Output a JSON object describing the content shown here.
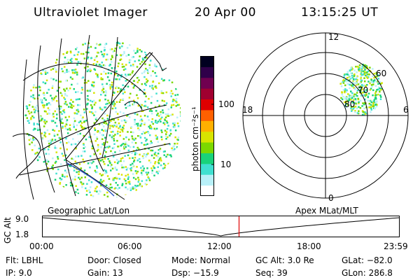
{
  "header": {
    "title": "Ultraviolet Imager",
    "date": "20 Apr 00",
    "time": "13:15:25 UT"
  },
  "colorbar": {
    "unit_label": "photon cm⁻²s⁻¹",
    "ticks": [
      "100",
      "10"
    ],
    "colors": [
      "#ffffff",
      "#b8f0f8",
      "#40e0d0",
      "#19d37a",
      "#7cd800",
      "#d8e400",
      "#ffb000",
      "#ff6000",
      "#e00000",
      "#a00030",
      "#700050",
      "#30004a",
      "#000020"
    ]
  },
  "polar_plot": {
    "mlt_labels": [
      "12",
      "18",
      "6",
      "0"
    ],
    "mlat_labels": [
      "60",
      "70",
      "80"
    ]
  },
  "altitude_panel": {
    "ylabel": "GC Alt",
    "yticks": [
      "9.0",
      "1.8"
    ],
    "left_label": "Geographic Lat/Lon",
    "right_label": "Apex MLat/MLT",
    "xticks": [
      "00:00",
      "06:00",
      "12:00",
      "18:00",
      "23:59"
    ],
    "current_time_fraction": 0.552,
    "curve_min_fraction": 0.5
  },
  "footer": {
    "flt": "Flt: LBHL",
    "ip": "IP: 9.0",
    "door": "Door: Closed",
    "gain": "Gain: 13",
    "mode": "Mode: Normal",
    "dsp": "Dsp: −15.9",
    "gc_alt": "GC Alt: 3.0 Re",
    "seq": "Seq: 39",
    "glat": "GLat: −82.0",
    "glon": "GLon: 286.8"
  }
}
